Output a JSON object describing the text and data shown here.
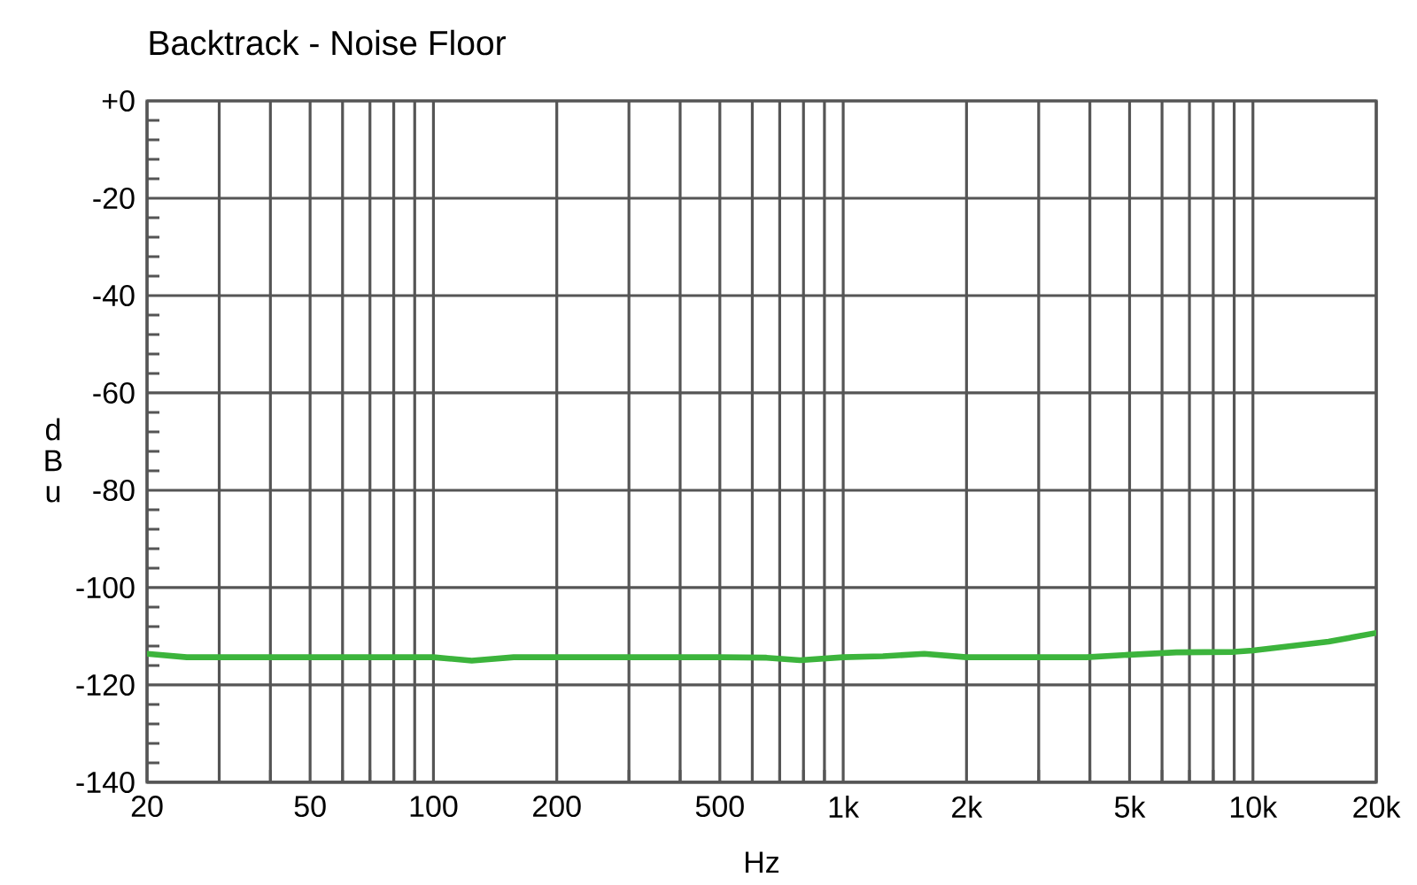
{
  "chart_data": {
    "type": "line",
    "title": "Backtrack - Noise Floor",
    "xlabel": "Hz",
    "ylabel": "dBu",
    "log": "x",
    "grid": true,
    "xlim": [
      20,
      20000
    ],
    "ylim": [
      -140,
      0
    ],
    "xticks": [
      20,
      {
        "value": 30,
        "label": null
      },
      {
        "value": 40,
        "label": null
      },
      50,
      {
        "value": 60,
        "label": null
      },
      {
        "value": 70,
        "label": null
      },
      {
        "value": 80,
        "label": null
      },
      {
        "value": 90,
        "label": null
      },
      100,
      200,
      {
        "value": 300,
        "label": null
      },
      {
        "value": 400,
        "label": null
      },
      500,
      {
        "value": 600,
        "label": null
      },
      {
        "value": 700,
        "label": null
      },
      {
        "value": 800,
        "label": null
      },
      {
        "value": 900,
        "label": null
      },
      {
        "value": 1000,
        "label": "1k"
      },
      {
        "value": 2000,
        "label": "2k"
      },
      {
        "value": 3000,
        "label": null
      },
      {
        "value": 4000,
        "label": null
      },
      {
        "value": 5000,
        "label": "5k"
      },
      {
        "value": 6000,
        "label": null
      },
      {
        "value": 7000,
        "label": null
      },
      {
        "value": 8000,
        "label": null
      },
      {
        "value": 9000,
        "label": null
      },
      {
        "value": 10000,
        "label": "10k"
      },
      {
        "value": 20000,
        "label": "20k"
      }
    ],
    "yticks": [
      -140,
      {
        "value": -136,
        "label": null
      },
      {
        "value": -132,
        "label": null
      },
      {
        "value": -128,
        "label": null
      },
      {
        "value": -124,
        "label": null
      },
      -120,
      {
        "value": -116,
        "label": null
      },
      {
        "value": -112,
        "label": null
      },
      {
        "value": -108,
        "label": null
      },
      {
        "value": -104,
        "label": null
      },
      -100,
      {
        "value": -96,
        "label": null
      },
      {
        "value": -92,
        "label": null
      },
      {
        "value": -88,
        "label": null
      },
      {
        "value": -84,
        "label": null
      },
      -80,
      {
        "value": -76,
        "label": null
      },
      {
        "value": -72,
        "label": null
      },
      {
        "value": -68,
        "label": null
      },
      {
        "value": -64,
        "label": null
      },
      -60,
      {
        "value": -56,
        "label": null
      },
      {
        "value": -52,
        "label": null
      },
      {
        "value": -48,
        "label": null
      },
      {
        "value": -44,
        "label": null
      },
      -40,
      {
        "value": -36,
        "label": null
      },
      {
        "value": -32,
        "label": null
      },
      {
        "value": -28,
        "label": null
      },
      {
        "value": -24,
        "label": null
      },
      -20,
      {
        "value": -16,
        "label": null
      },
      {
        "value": -12,
        "label": null
      },
      {
        "value": -8,
        "label": null
      },
      {
        "value": -4,
        "label": null
      },
      {
        "value": 0,
        "label": "+0"
      }
    ],
    "x": [
      20,
      25,
      40,
      60,
      100,
      124,
      157,
      300,
      500,
      650,
      785,
      1000,
      1250,
      1577,
      2000,
      3000,
      3930,
      5000,
      6500,
      9000,
      10000,
      15300,
      20000
    ],
    "series": [
      {
        "color": "#3cb43c",
        "values": [
          -113.6,
          -114.3,
          -114.3,
          -114.3,
          -114.3,
          -115.0,
          -114.3,
          -114.3,
          -114.3,
          -114.4,
          -114.9,
          -114.3,
          -114.1,
          -113.6,
          -114.3,
          -114.3,
          -114.3,
          -113.8,
          -113.3,
          -113.2,
          -112.9,
          -111.1,
          -109.3
        ]
      }
    ]
  }
}
